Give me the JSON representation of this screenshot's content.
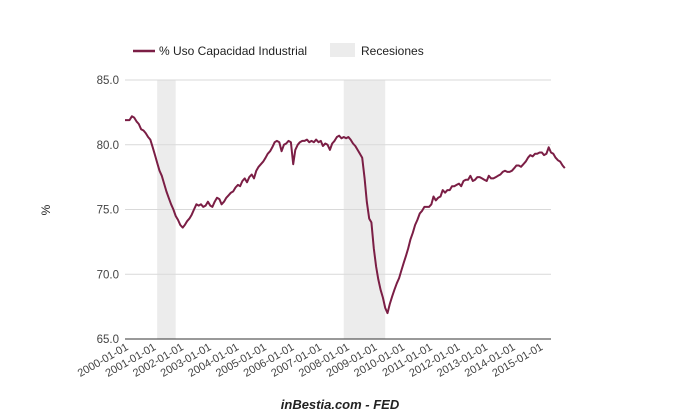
{
  "chart_data": {
    "type": "line",
    "ylabel": "%",
    "ylim": [
      65,
      85
    ],
    "xlim": [
      "2000-01-01",
      "2015-06-01"
    ],
    "yticks": [
      "65.0",
      "70.0",
      "75.0",
      "80.0",
      "85.0"
    ],
    "xticks": [
      "2000-01-01",
      "2001-01-01",
      "2002-01-01",
      "2003-01-01",
      "2004-01-01",
      "2005-01-01",
      "2006-01-01",
      "2007-01-01",
      "2008-01-01",
      "2009-01-01",
      "2010-01-01",
      "2011-01-01",
      "2012-01-01",
      "2013-01-01",
      "2014-01-01",
      "2015-01-01"
    ],
    "grid": true,
    "legend_position": "top-left",
    "source": "inBestia.com - FED",
    "colors": {
      "line": "#7b1e45",
      "recession": "#ececec",
      "grid": "#d9d9d9"
    },
    "recessions": [
      {
        "start": "2001-03-01",
        "end": "2001-11-01"
      },
      {
        "start": "2007-12-01",
        "end": "2009-06-01"
      }
    ],
    "series": [
      {
        "name": "% Uso Capacidad Industrial",
        "points": [
          [
            "2000-01-01",
            81.9
          ],
          [
            "2000-02-01",
            81.9
          ],
          [
            "2000-03-01",
            81.9
          ],
          [
            "2000-04-01",
            82.2
          ],
          [
            "2000-05-01",
            82.1
          ],
          [
            "2000-06-01",
            81.8
          ],
          [
            "2000-07-01",
            81.6
          ],
          [
            "2000-08-01",
            81.2
          ],
          [
            "2000-09-01",
            81.1
          ],
          [
            "2000-10-01",
            80.9
          ],
          [
            "2000-11-01",
            80.6
          ],
          [
            "2000-12-01",
            80.4
          ],
          [
            "2001-01-01",
            79.8
          ],
          [
            "2001-02-01",
            79.2
          ],
          [
            "2001-03-01",
            78.6
          ],
          [
            "2001-04-01",
            78.0
          ],
          [
            "2001-05-01",
            77.6
          ],
          [
            "2001-06-01",
            77.0
          ],
          [
            "2001-07-01",
            76.4
          ],
          [
            "2001-08-01",
            75.9
          ],
          [
            "2001-09-01",
            75.4
          ],
          [
            "2001-10-01",
            75.0
          ],
          [
            "2001-11-01",
            74.5
          ],
          [
            "2001-12-01",
            74.2
          ],
          [
            "2002-01-01",
            73.8
          ],
          [
            "2002-02-01",
            73.6
          ],
          [
            "2002-03-01",
            73.8
          ],
          [
            "2002-04-01",
            74.1
          ],
          [
            "2002-05-01",
            74.3
          ],
          [
            "2002-06-01",
            74.6
          ],
          [
            "2002-07-01",
            75.0
          ],
          [
            "2002-08-01",
            75.4
          ],
          [
            "2002-09-01",
            75.3
          ],
          [
            "2002-10-01",
            75.4
          ],
          [
            "2002-11-01",
            75.2
          ],
          [
            "2002-12-01",
            75.3
          ],
          [
            "2003-01-01",
            75.6
          ],
          [
            "2003-02-01",
            75.3
          ],
          [
            "2003-03-01",
            75.2
          ],
          [
            "2003-04-01",
            75.6
          ],
          [
            "2003-05-01",
            75.9
          ],
          [
            "2003-06-01",
            75.8
          ],
          [
            "2003-07-01",
            75.4
          ],
          [
            "2003-08-01",
            75.6
          ],
          [
            "2003-09-01",
            75.9
          ],
          [
            "2003-10-01",
            76.1
          ],
          [
            "2003-11-01",
            76.3
          ],
          [
            "2003-12-01",
            76.4
          ],
          [
            "2004-01-01",
            76.7
          ],
          [
            "2004-02-01",
            76.9
          ],
          [
            "2004-03-01",
            76.8
          ],
          [
            "2004-04-01",
            77.2
          ],
          [
            "2004-05-01",
            77.4
          ],
          [
            "2004-06-01",
            77.1
          ],
          [
            "2004-07-01",
            77.5
          ],
          [
            "2004-08-01",
            77.7
          ],
          [
            "2004-09-01",
            77.4
          ],
          [
            "2004-10-01",
            78.0
          ],
          [
            "2004-11-01",
            78.3
          ],
          [
            "2004-12-01",
            78.5
          ],
          [
            "2005-01-01",
            78.7
          ],
          [
            "2005-02-01",
            79.0
          ],
          [
            "2005-03-01",
            79.3
          ],
          [
            "2005-04-01",
            79.5
          ],
          [
            "2005-05-01",
            79.8
          ],
          [
            "2005-06-01",
            80.2
          ],
          [
            "2005-07-01",
            80.3
          ],
          [
            "2005-08-01",
            80.2
          ],
          [
            "2005-09-01",
            79.5
          ],
          [
            "2005-10-01",
            80.0
          ],
          [
            "2005-11-01",
            80.1
          ],
          [
            "2005-12-01",
            80.3
          ],
          [
            "2006-01-01",
            80.2
          ],
          [
            "2006-02-01",
            78.5
          ],
          [
            "2006-03-01",
            79.6
          ],
          [
            "2006-04-01",
            80.0
          ],
          [
            "2006-05-01",
            80.2
          ],
          [
            "2006-06-01",
            80.3
          ],
          [
            "2006-07-01",
            80.3
          ],
          [
            "2006-08-01",
            80.4
          ],
          [
            "2006-09-01",
            80.2
          ],
          [
            "2006-10-01",
            80.3
          ],
          [
            "2006-11-01",
            80.2
          ],
          [
            "2006-12-01",
            80.4
          ],
          [
            "2007-01-01",
            80.2
          ],
          [
            "2007-02-01",
            80.3
          ],
          [
            "2007-03-01",
            79.9
          ],
          [
            "2007-04-01",
            80.1
          ],
          [
            "2007-05-01",
            80.0
          ],
          [
            "2007-06-01",
            79.6
          ],
          [
            "2007-07-01",
            80.1
          ],
          [
            "2007-08-01",
            80.3
          ],
          [
            "2007-09-01",
            80.6
          ],
          [
            "2007-10-01",
            80.7
          ],
          [
            "2007-11-01",
            80.5
          ],
          [
            "2007-12-01",
            80.6
          ],
          [
            "2008-01-01",
            80.5
          ],
          [
            "2008-02-01",
            80.6
          ],
          [
            "2008-03-01",
            80.4
          ],
          [
            "2008-04-01",
            80.1
          ],
          [
            "2008-05-01",
            79.9
          ],
          [
            "2008-06-01",
            79.6
          ],
          [
            "2008-07-01",
            79.3
          ],
          [
            "2008-08-01",
            79.0
          ],
          [
            "2008-09-01",
            77.4
          ],
          [
            "2008-10-01",
            75.6
          ],
          [
            "2008-11-01",
            74.3
          ],
          [
            "2008-12-01",
            74.0
          ],
          [
            "2009-01-01",
            72.0
          ],
          [
            "2009-02-01",
            70.6
          ],
          [
            "2009-03-01",
            69.6
          ],
          [
            "2009-04-01",
            68.8
          ],
          [
            "2009-05-01",
            68.2
          ],
          [
            "2009-06-01",
            67.4
          ],
          [
            "2009-07-01",
            67.0
          ],
          [
            "2009-08-01",
            67.7
          ],
          [
            "2009-09-01",
            68.3
          ],
          [
            "2009-10-01",
            68.8
          ],
          [
            "2009-11-01",
            69.3
          ],
          [
            "2009-12-01",
            69.7
          ],
          [
            "2010-01-01",
            70.3
          ],
          [
            "2010-02-01",
            70.9
          ],
          [
            "2010-03-01",
            71.4
          ],
          [
            "2010-04-01",
            72.0
          ],
          [
            "2010-05-01",
            72.7
          ],
          [
            "2010-06-01",
            73.2
          ],
          [
            "2010-07-01",
            73.8
          ],
          [
            "2010-08-01",
            74.2
          ],
          [
            "2010-09-01",
            74.7
          ],
          [
            "2010-10-01",
            74.9
          ],
          [
            "2010-11-01",
            75.2
          ],
          [
            "2010-12-01",
            75.2
          ],
          [
            "2011-01-01",
            75.2
          ],
          [
            "2011-02-01",
            75.4
          ],
          [
            "2011-03-01",
            76.0
          ],
          [
            "2011-04-01",
            75.7
          ],
          [
            "2011-05-01",
            75.9
          ],
          [
            "2011-06-01",
            76.0
          ],
          [
            "2011-07-01",
            76.5
          ],
          [
            "2011-08-01",
            76.3
          ],
          [
            "2011-09-01",
            76.5
          ],
          [
            "2011-10-01",
            76.5
          ],
          [
            "2011-11-01",
            76.8
          ],
          [
            "2011-12-01",
            76.8
          ],
          [
            "2012-01-01",
            76.9
          ],
          [
            "2012-02-01",
            77.0
          ],
          [
            "2012-03-01",
            76.8
          ],
          [
            "2012-04-01",
            77.2
          ],
          [
            "2012-05-01",
            77.3
          ],
          [
            "2012-06-01",
            77.3
          ],
          [
            "2012-07-01",
            77.6
          ],
          [
            "2012-08-01",
            77.2
          ],
          [
            "2012-09-01",
            77.3
          ],
          [
            "2012-10-01",
            77.5
          ],
          [
            "2012-11-01",
            77.5
          ],
          [
            "2012-12-01",
            77.4
          ],
          [
            "2013-01-01",
            77.3
          ],
          [
            "2013-02-01",
            77.2
          ],
          [
            "2013-03-01",
            77.6
          ],
          [
            "2013-04-01",
            77.4
          ],
          [
            "2013-05-01",
            77.4
          ],
          [
            "2013-06-01",
            77.5
          ],
          [
            "2013-07-01",
            77.6
          ],
          [
            "2013-08-01",
            77.7
          ],
          [
            "2013-09-01",
            77.9
          ],
          [
            "2013-10-01",
            78.0
          ],
          [
            "2013-11-01",
            77.9
          ],
          [
            "2013-12-01",
            77.9
          ],
          [
            "2014-01-01",
            78.0
          ],
          [
            "2014-02-01",
            78.2
          ],
          [
            "2014-03-01",
            78.4
          ],
          [
            "2014-04-01",
            78.4
          ],
          [
            "2014-05-01",
            78.3
          ],
          [
            "2014-06-01",
            78.5
          ],
          [
            "2014-07-01",
            78.7
          ],
          [
            "2014-08-01",
            79.0
          ],
          [
            "2014-09-01",
            79.2
          ],
          [
            "2014-10-01",
            79.1
          ],
          [
            "2014-11-01",
            79.3
          ],
          [
            "2014-12-01",
            79.3
          ],
          [
            "2015-01-01",
            79.4
          ],
          [
            "2015-02-01",
            79.4
          ],
          [
            "2015-03-01",
            79.2
          ],
          [
            "2015-04-01",
            79.3
          ],
          [
            "2015-05-01",
            79.8
          ],
          [
            "2015-06-01",
            79.4
          ],
          [
            "2015-07-01",
            79.3
          ],
          [
            "2015-08-01",
            79.0
          ],
          [
            "2015-09-01",
            78.8
          ],
          [
            "2015-10-01",
            78.7
          ],
          [
            "2015-11-01",
            78.4
          ],
          [
            "2015-12-01",
            78.2
          ]
        ]
      }
    ],
    "legend": [
      {
        "label": "% Uso Capacidad Industrial",
        "kind": "line"
      },
      {
        "label": "Recesiones",
        "kind": "box"
      }
    ]
  }
}
